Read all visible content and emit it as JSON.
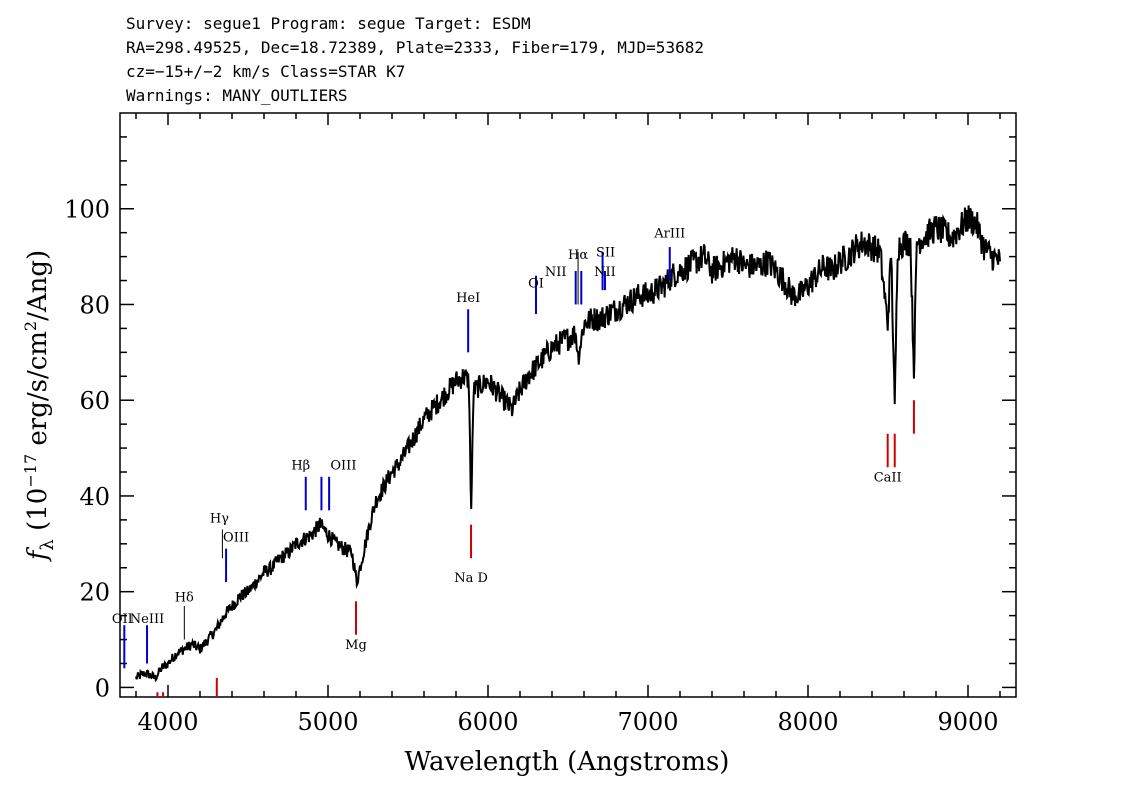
{
  "header": {
    "line1": "Survey: segue1 Program: segue Target: ESDM",
    "line2": "RA=298.49525, Dec=18.72389, Plate=2333, Fiber=179, MJD=53682",
    "line3": "cz=−15+/−2 km/s Class=STAR K7",
    "line4": "Warnings: MANY_OUTLIERS"
  },
  "chart_data": {
    "type": "line",
    "xlabel": "Wavelength (Angstroms)",
    "ylabel": "f_λ (10^-17 erg/s/cm^2/Ang)",
    "ylabel_parts": {
      "f": "f",
      "lambda": "λ",
      "unit_pre": " (10",
      "exp1": "−17",
      "unit_mid": " erg/s/cm",
      "exp2": "2",
      "unit_post": "/Ang)"
    },
    "xlim": [
      3700,
      9300
    ],
    "ylim": [
      -2,
      120
    ],
    "x_ticks": [
      4000,
      5000,
      6000,
      7000,
      8000,
      9000
    ],
    "x_tick_labels": [
      "4000",
      "5000",
      "6000",
      "7000",
      "8000",
      "9000"
    ],
    "y_ticks": [
      0,
      20,
      40,
      60,
      80,
      100
    ],
    "y_tick_labels": [
      "0",
      "20",
      "40",
      "60",
      "80",
      "100"
    ],
    "grid": false,
    "series": [
      {
        "color": "#000000",
        "x": [
          3800,
          3860,
          3920,
          3960,
          4000,
          4050,
          4100,
          4150,
          4200,
          4250,
          4300,
          4350,
          4400,
          4450,
          4500,
          4550,
          4600,
          4650,
          4700,
          4750,
          4800,
          4850,
          4900,
          4950,
          5000,
          5050,
          5100,
          5150,
          5180,
          5220,
          5260,
          5300,
          5350,
          5400,
          5450,
          5500,
          5550,
          5600,
          5650,
          5700,
          5750,
          5800,
          5850,
          5880,
          5895,
          5910,
          5950,
          6000,
          6050,
          6100,
          6150,
          6200,
          6250,
          6300,
          6350,
          6400,
          6450,
          6500,
          6550,
          6563,
          6600,
          6650,
          6700,
          6750,
          6800,
          6850,
          6900,
          6950,
          7000,
          7050,
          7100,
          7150,
          7200,
          7250,
          7300,
          7350,
          7400,
          7450,
          7500,
          7550,
          7600,
          7650,
          7700,
          7750,
          7800,
          7850,
          7900,
          7950,
          8000,
          8050,
          8100,
          8150,
          8200,
          8250,
          8300,
          8350,
          8400,
          8450,
          8498,
          8520,
          8542,
          8560,
          8600,
          8640,
          8662,
          8680,
          8720,
          8760,
          8800,
          8850,
          8900,
          8950,
          9000,
          9050,
          9100,
          9150,
          9200
        ],
        "y": [
          2,
          3,
          2,
          4,
          5,
          7,
          8,
          9,
          8,
          10,
          12,
          15,
          17,
          19,
          20,
          22,
          24,
          25,
          27,
          28,
          30,
          31,
          32,
          34,
          32,
          30,
          29,
          28,
          22,
          28,
          34,
          39,
          42,
          45,
          47,
          50,
          53,
          56,
          58,
          60,
          62,
          64,
          65,
          64,
          37,
          62,
          63,
          64,
          62,
          60,
          58,
          62,
          65,
          67,
          69,
          71,
          72,
          73,
          74,
          69,
          76,
          77,
          77,
          78,
          79,
          80,
          81,
          82,
          82,
          83,
          84,
          86,
          87,
          88,
          89,
          90,
          87,
          88,
          89,
          90,
          88,
          88,
          88,
          89,
          87,
          85,
          82,
          82,
          84,
          86,
          88,
          87,
          89,
          90,
          92,
          93,
          92,
          91,
          76,
          91,
          58,
          92,
          93,
          93,
          66,
          93,
          94,
          95,
          96,
          95,
          94,
          96,
          98,
          97,
          92,
          90,
          89
        ]
      }
    ],
    "lines": [
      {
        "label": "OII",
        "x": 3727,
        "top": 13,
        "bottom": 4,
        "color": "#0000cc",
        "label_y": 13.5,
        "label_dx": -2
      },
      {
        "label": "NeIII",
        "x": 3869,
        "top": 13,
        "bottom": 5,
        "color": "#0000cc",
        "label_y": 13.5,
        "label_dx": 0
      },
      {
        "label": "Hδ",
        "x": 4102,
        "top": 17,
        "bottom": 10,
        "color": "#000000",
        "label_y": 18,
        "label_dx": 0
      },
      {
        "label": "Hγ",
        "x": 4340,
        "top": 33,
        "bottom": 27,
        "color": "#000000",
        "label_y": 34.5,
        "label_dx": -3
      },
      {
        "label": "OIII",
        "x": 4363,
        "top": 29,
        "bottom": 22,
        "color": "#0000cc",
        "label_y": 30.5,
        "label_dx": 10
      },
      {
        "label": "Hβ",
        "x": 4861,
        "top": 44,
        "bottom": 37,
        "color": "#0000cc",
        "label_y": 45.5,
        "label_dx": -5
      },
      {
        "label": "OIII",
        "x": 4959,
        "top": 44,
        "bottom": 37,
        "color": "#0000cc",
        "label_y": 45.5,
        "label_dx": 22
      },
      {
        "label": "",
        "x": 5007,
        "top": 44,
        "bottom": 37,
        "color": "#0000cc",
        "label_y": 45.5,
        "label_dx": 0
      },
      {
        "label": "HeI",
        "x": 5876,
        "top": 79,
        "bottom": 70,
        "color": "#0000cc",
        "label_y": 80.5,
        "label_dx": 0
      },
      {
        "label": "OI",
        "x": 6300,
        "top": 86,
        "bottom": 78,
        "color": "#0000cc",
        "label_y": 83.5,
        "label_dx": 0
      },
      {
        "label": "NII",
        "x": 6548,
        "top": 87,
        "bottom": 80,
        "color": "#0000cc",
        "label_y": 86,
        "label_dx": -20
      },
      {
        "label": "Hα",
        "x": 6563,
        "top": 91,
        "bottom": 80,
        "color": "#000000",
        "label_y": 89.5,
        "label_dx": 0
      },
      {
        "label": "",
        "x": 6583,
        "top": 87,
        "bottom": 80,
        "color": "#0000cc",
        "label_y": 88,
        "label_dx": 0
      },
      {
        "label": "SII",
        "x": 6716,
        "top": 91,
        "bottom": 83,
        "color": "#0000cc",
        "label_y": 90,
        "label_dx": 3
      },
      {
        "label": "NII",
        "x": 6731,
        "top": 87,
        "bottom": 83,
        "color": "#0000cc",
        "label_y": 86,
        "label_dx": 0
      },
      {
        "label": "ArIII",
        "x": 7136,
        "top": 92,
        "bottom": 85,
        "color": "#0000cc",
        "label_y": 94,
        "label_dx": 0
      },
      {
        "label": "",
        "x": 3934,
        "top": -1,
        "bottom": -5,
        "color": "#cc0000",
        "label_y": 0,
        "label_dx": 0
      },
      {
        "label": "",
        "x": 3969,
        "top": -1,
        "bottom": -5,
        "color": "#cc0000",
        "label_y": 0,
        "label_dx": 0
      },
      {
        "label": "",
        "x": 4305,
        "top": 2,
        "bottom": -5,
        "color": "#cc0000",
        "label_y": 0,
        "label_dx": 0
      },
      {
        "label": "Mg",
        "x": 5175,
        "top": 18,
        "bottom": 11,
        "color": "#cc0000",
        "label_y": 8,
        "label_dx": 0
      },
      {
        "label": "Na  D",
        "x": 5894,
        "top": 34,
        "bottom": 27,
        "color": "#cc0000",
        "label_y": 22,
        "label_dx": 0
      },
      {
        "label": "CaII",
        "x": 8498,
        "top": 53,
        "bottom": 46,
        "color": "#cc0000",
        "label_y": 43,
        "label_dx": 0
      },
      {
        "label": "",
        "x": 8542,
        "top": 53,
        "bottom": 46,
        "color": "#cc0000",
        "label_y": 0,
        "label_dx": 0
      },
      {
        "label": "",
        "x": 8662,
        "top": 60,
        "bottom": 53,
        "color": "#cc0000",
        "label_y": 0,
        "label_dx": 0
      }
    ]
  }
}
